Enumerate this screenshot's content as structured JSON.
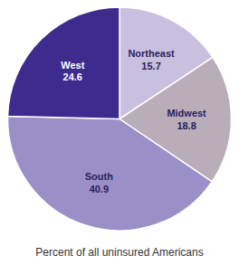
{
  "chart_data": {
    "type": "pie",
    "title": "Percent of all uninsured Americans",
    "categories": [
      "Northeast",
      "Midwest",
      "South",
      "West"
    ],
    "values": [
      15.7,
      18.8,
      40.9,
      24.6
    ],
    "colors": [
      "#c8c0de",
      "#b8adb8",
      "#9b8fc8",
      "#3d2b8e"
    ],
    "data_labels": true
  }
}
